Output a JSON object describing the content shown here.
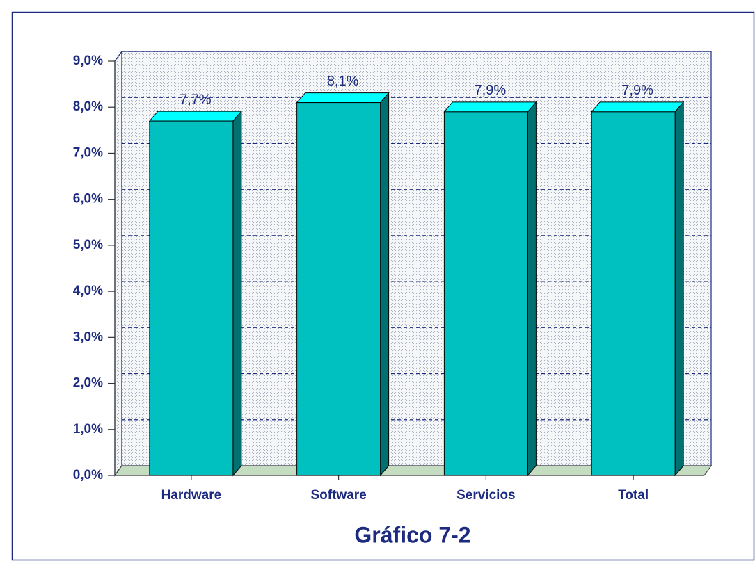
{
  "chart_data": {
    "type": "bar3d",
    "title": "Gráfico 7-2",
    "categories": [
      "Hardware",
      "Software",
      "Servicios",
      "Total"
    ],
    "values": [
      7.7,
      8.1,
      7.9,
      7.9
    ],
    "value_labels": [
      "7,7%",
      "8,1%",
      "7,9%",
      "7,9%"
    ],
    "color": "#00c0c0",
    "ylim": [
      0,
      9
    ],
    "yticks": [
      {
        "value": 0,
        "label": "0,0%"
      },
      {
        "value": 1,
        "label": "1,0%"
      },
      {
        "value": 2,
        "label": "2,0%"
      },
      {
        "value": 3,
        "label": "3,0%"
      },
      {
        "value": 4,
        "label": "4,0%"
      },
      {
        "value": 5,
        "label": "5,0%"
      },
      {
        "value": 6,
        "label": "6,0%"
      },
      {
        "value": 7,
        "label": "7,0%"
      },
      {
        "value": 8,
        "label": "8,0%"
      },
      {
        "value": 9,
        "label": "9,0%"
      }
    ],
    "grid": true
  }
}
